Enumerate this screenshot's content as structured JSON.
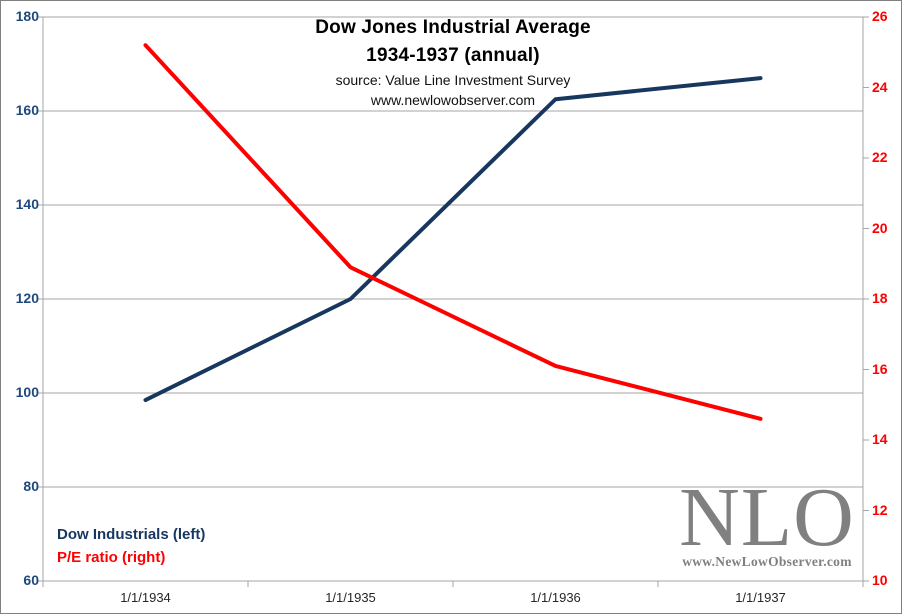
{
  "title": {
    "line1": "Dow Jones Industrial  Average",
    "line2": "1934-1937 (annual)",
    "line3": "source: Value Line Investment Survey",
    "line4": "www.newlowobserver.com"
  },
  "legend": {
    "series1": "Dow Industrials (left)",
    "series2": "P/E ratio (right)"
  },
  "logo": {
    "text": "NLO",
    "url": "www.NewLowObserver.com"
  },
  "colors": {
    "dow_line": "#17375E",
    "pe_line": "#FF0000",
    "left_axis_text": "#1F497D",
    "right_axis_text": "#FF0000",
    "gridline": "#A6A6A6",
    "logo_gray": "#808080"
  },
  "chart_data": {
    "type": "line",
    "title": "Dow Jones Industrial Average 1934-1937 (annual)",
    "categories": [
      "1/1/1934",
      "1/1/1935",
      "1/1/1936",
      "1/1/1937"
    ],
    "series": [
      {
        "name": "Dow Industrials (left)",
        "axis": "left",
        "color": "#17375E",
        "values": [
          98.5,
          120,
          162.5,
          167
        ]
      },
      {
        "name": "P/E ratio (right)",
        "axis": "right",
        "color": "#FF0000",
        "values": [
          25.2,
          18.9,
          16.1,
          14.6
        ]
      }
    ],
    "left_axis": {
      "min": 60,
      "max": 180,
      "step": 20,
      "ticks": [
        180,
        160,
        140,
        120,
        100,
        80,
        60
      ]
    },
    "right_axis": {
      "min": 10,
      "max": 26,
      "step": 2,
      "ticks": [
        26,
        24,
        22,
        20,
        18,
        16,
        14,
        12,
        10
      ]
    },
    "grid": "horizontal",
    "legend_position": "inside-bottom-left"
  }
}
